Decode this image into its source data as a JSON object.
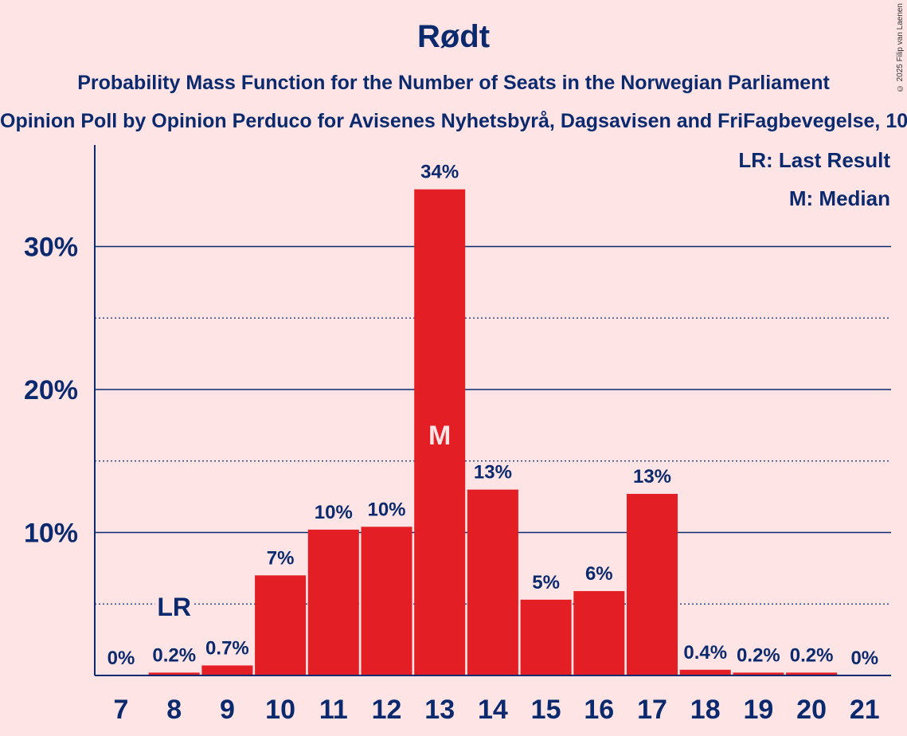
{
  "header": {
    "title": "Rødt",
    "subtitle": "Probability Mass Function for the Number of Seats in the Norwegian Parliament",
    "source": "Opinion Poll by Opinion Perduco for Avisenes Nyhetsbyrå, Dagsavisen and FriFagbevegelse, 10",
    "copyright": "© 2025 Filip van Laenen"
  },
  "chart_data": {
    "type": "bar",
    "title": "Rødt",
    "xlabel": "",
    "ylabel": "",
    "categories": [
      "7",
      "8",
      "9",
      "10",
      "11",
      "12",
      "13",
      "14",
      "15",
      "16",
      "17",
      "18",
      "19",
      "20",
      "21"
    ],
    "values": [
      0,
      0.2,
      0.7,
      7,
      10.2,
      10.4,
      34,
      13,
      5.3,
      5.9,
      12.7,
      0.4,
      0.2,
      0.2,
      0
    ],
    "data_labels": [
      "0%",
      "0.2%",
      "0.7%",
      "7%",
      "10%",
      "10%",
      "34%",
      "13%",
      "5%",
      "6%",
      "13%",
      "0.4%",
      "0.2%",
      "0.2%",
      "0%"
    ],
    "ylim": [
      0,
      37
    ],
    "yticks": [
      10,
      20,
      30
    ],
    "ytick_labels": [
      "10%",
      "20%",
      "30%"
    ],
    "minor_gridlines": [
      5,
      15,
      25
    ],
    "last_result_category": "8",
    "last_result_marker": "LR",
    "median_category": "13",
    "median_marker": "M",
    "legend": [
      "LR: Last Result",
      "M: Median"
    ],
    "legend_position": "top-right",
    "colors": {
      "bar": "#E31E24",
      "axis": "#0B2A6E",
      "background": "#FFE4E6",
      "median_text": "#FFE4E6"
    }
  }
}
